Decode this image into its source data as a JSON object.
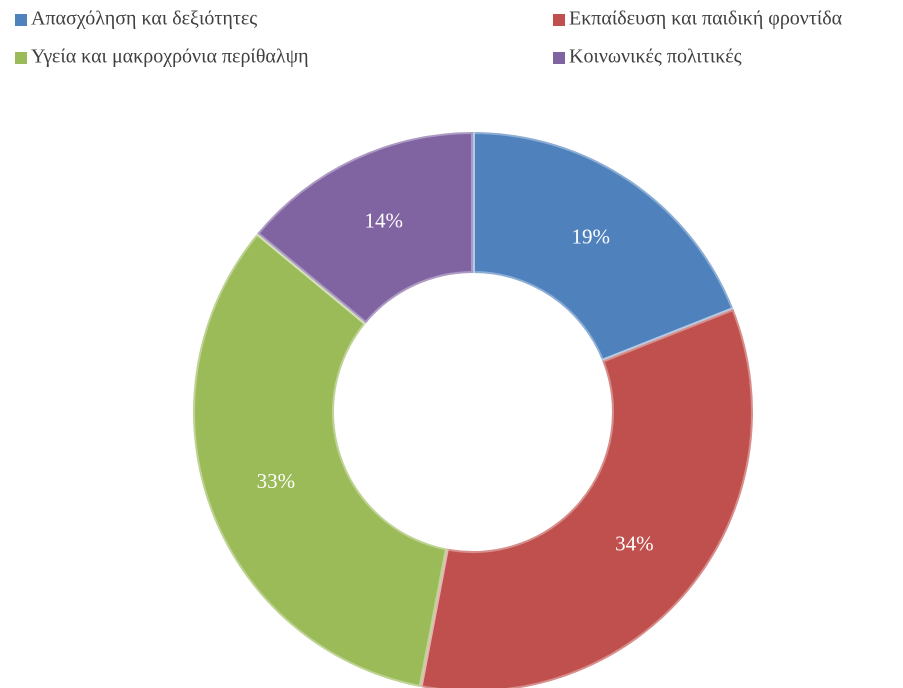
{
  "chart_data": {
    "type": "donut",
    "categories": [
      "Απασχόληση και δεξιότητες",
      "Εκπαίδευση και παιδική φροντίδα",
      "Υγεία και μακροχρόνια περίθαλψη",
      "Κοινωνικές πολιτικές"
    ],
    "values": [
      19,
      34,
      33,
      14
    ],
    "value_labels": [
      "19%",
      "34%",
      "33%",
      "14%"
    ],
    "colors": [
      "#4f81bd",
      "#c0504d",
      "#9bbb59",
      "#8064a2"
    ],
    "legend": "top"
  }
}
